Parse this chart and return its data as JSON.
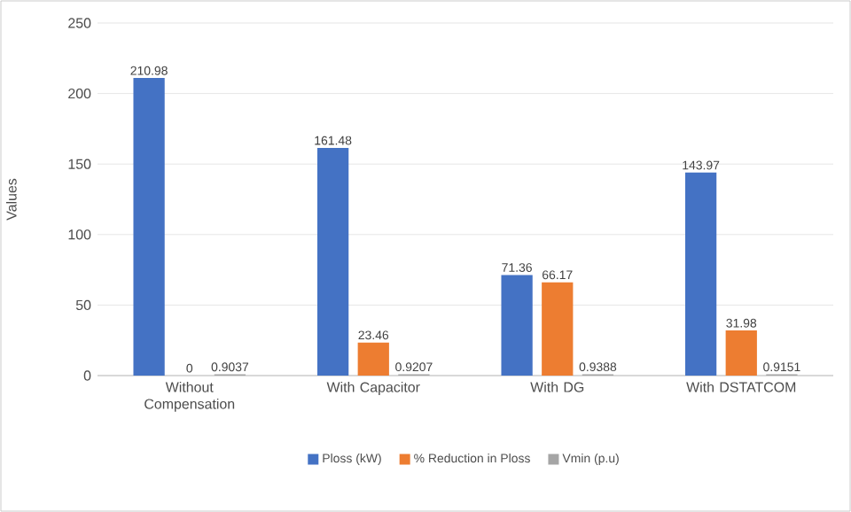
{
  "chart_data": {
    "type": "bar",
    "ylabel": "Values",
    "categories": [
      "Without Compensation",
      "With Capacitor",
      "With DG",
      "With DSTATCOM"
    ],
    "series": [
      {
        "name": "Ploss (kW)",
        "color": "#4472c4",
        "values": [
          210.98,
          161.48,
          71.36,
          143.97
        ]
      },
      {
        "name": "% Reduction in Ploss",
        "color": "#ed7d31",
        "values": [
          0,
          23.46,
          66.17,
          31.98
        ]
      },
      {
        "name": "Vmin (p.u)",
        "color": "#a5a5a5",
        "values": [
          0.9037,
          0.9207,
          0.9388,
          0.9151
        ]
      }
    ],
    "ylim": [
      0,
      250
    ],
    "yticks": [
      0,
      50,
      100,
      150,
      200,
      250
    ],
    "grid": "y",
    "legend": "bottom",
    "data_labels": true
  }
}
